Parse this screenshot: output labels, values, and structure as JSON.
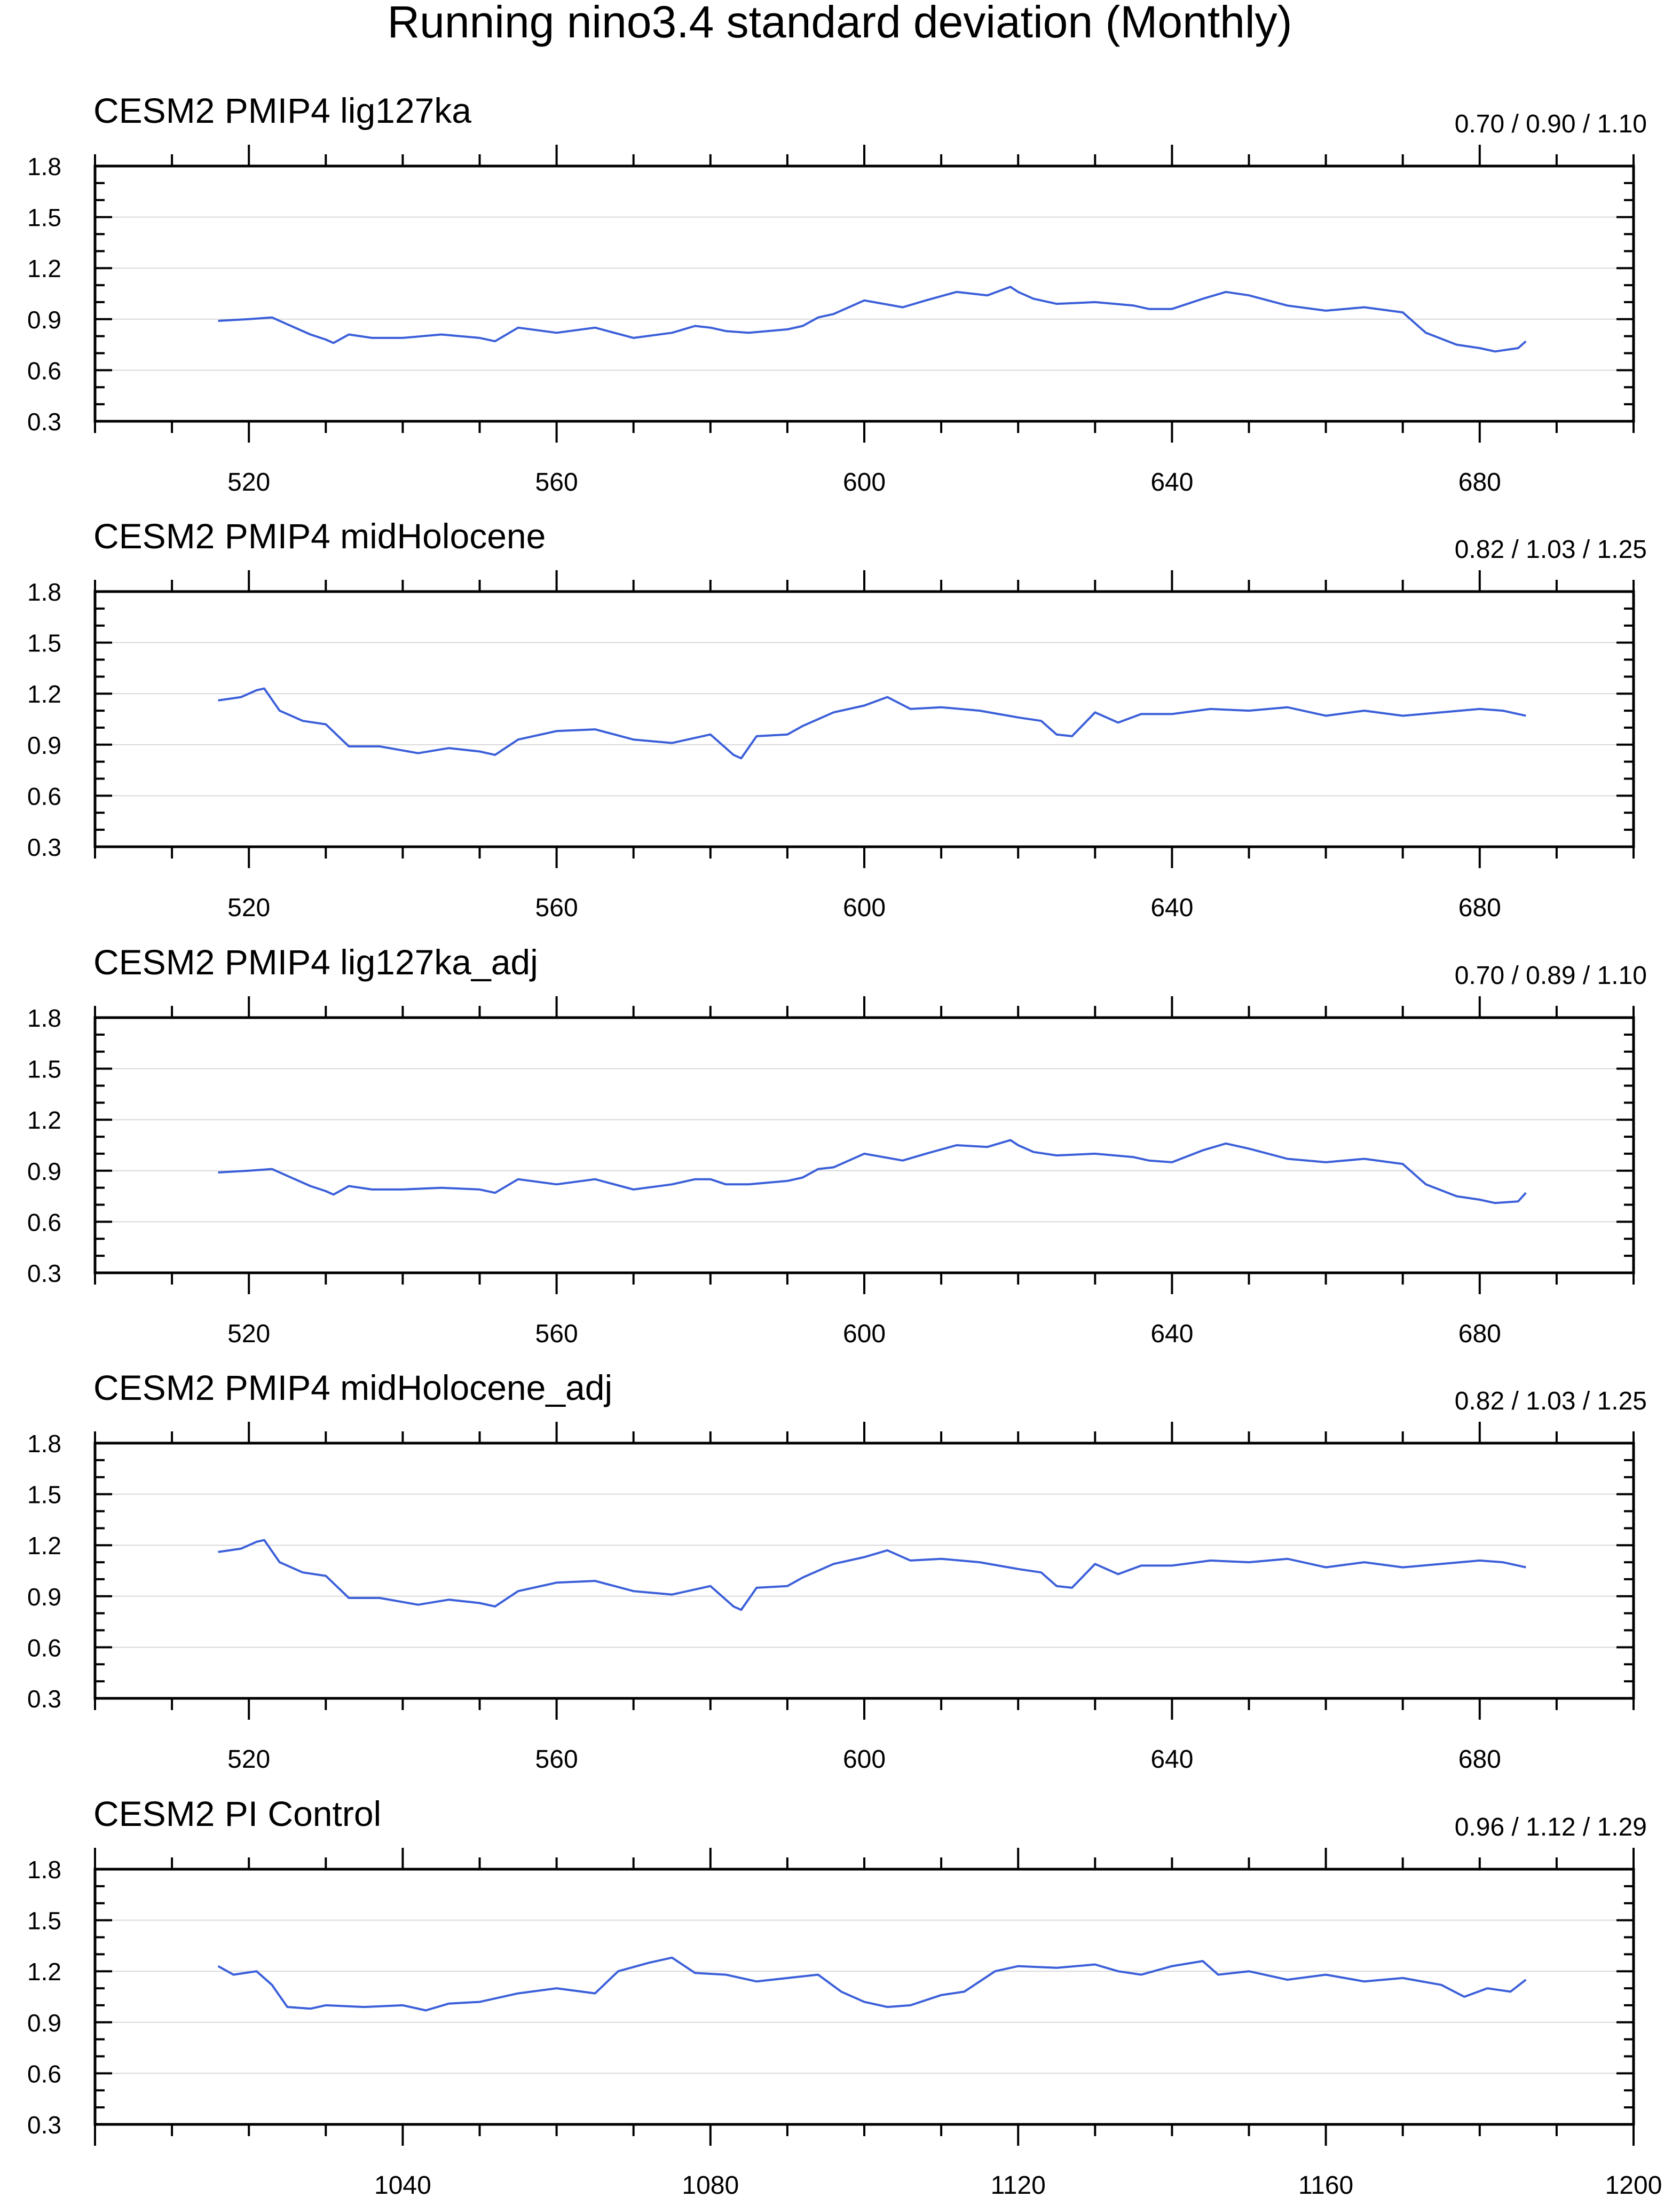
{
  "figure_title": "Running nino3.4 standard deviation (Monthly)",
  "colors": {
    "line": "#3b5fd9",
    "grid": "#d9d9d9",
    "axis": "#000000"
  },
  "chart_data": [
    {
      "type": "line",
      "title": "CESM2 PMIP4 lig127ka",
      "stats": "0.70 / 0.90 / 1.10",
      "xlim": [
        500,
        700
      ],
      "ylim": [
        0.3,
        1.8
      ],
      "xticks": [
        520,
        560,
        600,
        640,
        680
      ],
      "yticks": [
        "0.3",
        "0.6",
        "0.9",
        "1.2",
        "1.5",
        "1.8"
      ],
      "x": [
        516,
        520,
        523,
        525,
        528,
        530,
        531,
        533,
        536,
        540,
        545,
        550,
        552,
        555,
        560,
        565,
        570,
        575,
        578,
        580,
        582,
        585,
        590,
        592,
        594,
        596,
        600,
        605,
        608,
        612,
        616,
        619,
        620,
        622,
        625,
        630,
        635,
        637,
        640,
        644,
        647,
        650,
        655,
        660,
        665,
        670,
        673,
        677,
        680,
        682,
        685,
        686
      ],
      "values": [
        0.89,
        0.9,
        0.91,
        0.87,
        0.81,
        0.78,
        0.76,
        0.81,
        0.79,
        0.79,
        0.81,
        0.79,
        0.77,
        0.85,
        0.82,
        0.85,
        0.79,
        0.82,
        0.86,
        0.85,
        0.83,
        0.82,
        0.84,
        0.86,
        0.91,
        0.93,
        1.01,
        0.97,
        1.01,
        1.06,
        1.04,
        1.09,
        1.06,
        1.02,
        0.99,
        1.0,
        0.98,
        0.96,
        0.96,
        1.02,
        1.06,
        1.04,
        0.98,
        0.95,
        0.97,
        0.94,
        0.82,
        0.75,
        0.73,
        0.71,
        0.73,
        0.77
      ]
    },
    {
      "type": "line",
      "title": "CESM2 PMIP4 midHolocene",
      "stats": "0.82 / 1.03 / 1.25",
      "xlim": [
        500,
        700
      ],
      "ylim": [
        0.3,
        1.8
      ],
      "xticks": [
        520,
        560,
        600,
        640,
        680
      ],
      "yticks": [
        "0.3",
        "0.6",
        "0.9",
        "1.2",
        "1.5",
        "1.8"
      ],
      "x": [
        516,
        519,
        521,
        522,
        524,
        527,
        530,
        533,
        537,
        542,
        546,
        550,
        552,
        555,
        560,
        565,
        570,
        575,
        578,
        580,
        583,
        584,
        586,
        590,
        592,
        596,
        600,
        603,
        606,
        610,
        615,
        620,
        623,
        625,
        627,
        630,
        633,
        636,
        640,
        645,
        650,
        655,
        660,
        665,
        670,
        675,
        680,
        683,
        686
      ],
      "values": [
        1.16,
        1.18,
        1.22,
        1.23,
        1.1,
        1.04,
        1.02,
        0.89,
        0.89,
        0.85,
        0.88,
        0.86,
        0.84,
        0.93,
        0.98,
        0.99,
        0.93,
        0.91,
        0.94,
        0.96,
        0.84,
        0.82,
        0.95,
        0.96,
        1.01,
        1.09,
        1.13,
        1.18,
        1.11,
        1.12,
        1.1,
        1.06,
        1.04,
        0.96,
        0.95,
        1.09,
        1.03,
        1.08,
        1.08,
        1.11,
        1.1,
        1.12,
        1.07,
        1.1,
        1.07,
        1.09,
        1.11,
        1.1,
        1.07
      ]
    },
    {
      "type": "line",
      "title": "CESM2 PMIP4 lig127ka_adj",
      "stats": "0.70 / 0.89 / 1.10",
      "xlim": [
        500,
        700
      ],
      "ylim": [
        0.3,
        1.8
      ],
      "xticks": [
        520,
        560,
        600,
        640,
        680
      ],
      "yticks": [
        "0.3",
        "0.6",
        "0.9",
        "1.2",
        "1.5",
        "1.8"
      ],
      "x": [
        516,
        520,
        523,
        525,
        528,
        530,
        531,
        533,
        536,
        540,
        545,
        550,
        552,
        555,
        560,
        565,
        570,
        575,
        578,
        580,
        582,
        585,
        590,
        592,
        594,
        596,
        600,
        605,
        608,
        612,
        616,
        619,
        620,
        622,
        625,
        630,
        635,
        637,
        640,
        644,
        647,
        650,
        655,
        660,
        665,
        670,
        673,
        677,
        680,
        682,
        685,
        686
      ],
      "values": [
        0.89,
        0.9,
        0.91,
        0.87,
        0.81,
        0.78,
        0.76,
        0.81,
        0.79,
        0.79,
        0.8,
        0.79,
        0.77,
        0.85,
        0.82,
        0.85,
        0.79,
        0.82,
        0.85,
        0.85,
        0.82,
        0.82,
        0.84,
        0.86,
        0.91,
        0.92,
        1.0,
        0.96,
        1.0,
        1.05,
        1.04,
        1.08,
        1.05,
        1.01,
        0.99,
        1.0,
        0.98,
        0.96,
        0.95,
        1.02,
        1.06,
        1.03,
        0.97,
        0.95,
        0.97,
        0.94,
        0.82,
        0.75,
        0.73,
        0.71,
        0.72,
        0.77
      ]
    },
    {
      "type": "line",
      "title": "CESM2 PMIP4 midHolocene_adj",
      "stats": "0.82 / 1.03 / 1.25",
      "xlim": [
        500,
        700
      ],
      "ylim": [
        0.3,
        1.8
      ],
      "xticks": [
        520,
        560,
        600,
        640,
        680
      ],
      "yticks": [
        "0.3",
        "0.6",
        "0.9",
        "1.2",
        "1.5",
        "1.8"
      ],
      "x": [
        516,
        519,
        521,
        522,
        524,
        527,
        530,
        533,
        537,
        542,
        546,
        550,
        552,
        555,
        560,
        565,
        570,
        575,
        578,
        580,
        583,
        584,
        586,
        590,
        592,
        596,
        600,
        603,
        606,
        610,
        615,
        620,
        623,
        625,
        627,
        630,
        633,
        636,
        640,
        645,
        650,
        655,
        660,
        665,
        670,
        675,
        680,
        683,
        686
      ],
      "values": [
        1.16,
        1.18,
        1.22,
        1.23,
        1.1,
        1.04,
        1.02,
        0.89,
        0.89,
        0.85,
        0.88,
        0.86,
        0.84,
        0.93,
        0.98,
        0.99,
        0.93,
        0.91,
        0.94,
        0.96,
        0.84,
        0.82,
        0.95,
        0.96,
        1.01,
        1.09,
        1.13,
        1.17,
        1.11,
        1.12,
        1.1,
        1.06,
        1.04,
        0.96,
        0.95,
        1.09,
        1.03,
        1.08,
        1.08,
        1.11,
        1.1,
        1.12,
        1.07,
        1.1,
        1.07,
        1.09,
        1.11,
        1.1,
        1.07
      ]
    },
    {
      "type": "line",
      "title": "CESM2 PI Control",
      "stats": "0.96 / 1.12 / 1.29",
      "xlim": [
        1000,
        1200
      ],
      "ylim": [
        0.3,
        1.8
      ],
      "xticks": [
        1040,
        1080,
        1120,
        1160,
        1200
      ],
      "yticks": [
        "0.3",
        "0.6",
        "0.9",
        "1.2",
        "1.5",
        "1.8"
      ],
      "x": [
        1016,
        1018,
        1021,
        1023,
        1025,
        1028,
        1030,
        1035,
        1040,
        1043,
        1046,
        1050,
        1055,
        1060,
        1065,
        1068,
        1072,
        1075,
        1078,
        1082,
        1086,
        1090,
        1094,
        1097,
        1100,
        1103,
        1106,
        1110,
        1113,
        1117,
        1120,
        1125,
        1130,
        1133,
        1136,
        1140,
        1144,
        1146,
        1150,
        1155,
        1160,
        1165,
        1170,
        1175,
        1178,
        1181,
        1184,
        1186
      ],
      "values": [
        1.23,
        1.18,
        1.2,
        1.12,
        0.99,
        0.98,
        1.0,
        0.99,
        1.0,
        0.97,
        1.01,
        1.02,
        1.07,
        1.1,
        1.07,
        1.2,
        1.25,
        1.28,
        1.19,
        1.18,
        1.14,
        1.16,
        1.18,
        1.08,
        1.02,
        0.99,
        1.0,
        1.06,
        1.08,
        1.2,
        1.23,
        1.22,
        1.24,
        1.2,
        1.18,
        1.23,
        1.26,
        1.18,
        1.2,
        1.15,
        1.18,
        1.14,
        1.16,
        1.12,
        1.05,
        1.1,
        1.08,
        1.15
      ]
    }
  ]
}
